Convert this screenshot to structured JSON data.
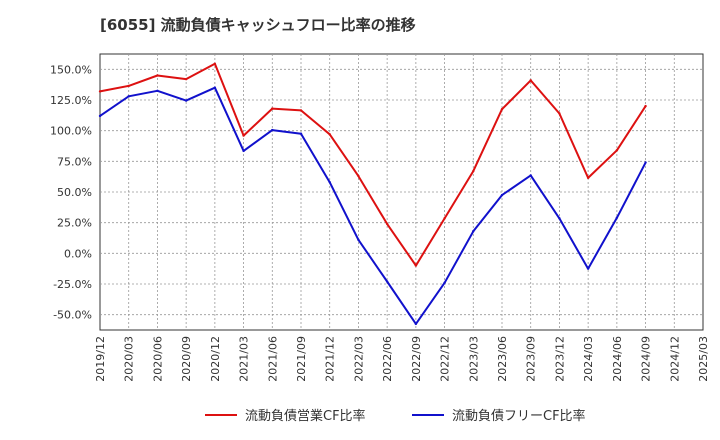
{
  "chart_data": {
    "type": "line",
    "title": "[6055]  流動負債キャッシュフロー比率の推移",
    "xlabel": "",
    "ylabel": "",
    "ylim": [
      -62.5,
      162.5
    ],
    "yticks": [
      150,
      125,
      100,
      75,
      50,
      25,
      0,
      -25,
      -50
    ],
    "ytick_labels": [
      "150.0%",
      "125.0%",
      "100.0%",
      "75.0%",
      "50.0%",
      "25.0%",
      "0.0%",
      "-25.0%",
      "-50.0%"
    ],
    "categories": [
      "2019/12",
      "2020/03",
      "2020/06",
      "2020/09",
      "2020/12",
      "2021/03",
      "2021/06",
      "2021/09",
      "2021/12",
      "2022/03",
      "2022/06",
      "2022/09",
      "2022/12",
      "2023/03",
      "2023/06",
      "2023/09",
      "2023/12",
      "2024/03",
      "2024/06",
      "2024/09",
      "2024/12",
      "2025/03"
    ],
    "grid": true,
    "legend_position": "bottom",
    "series": [
      {
        "name": "流動負債営業CF比率",
        "color": "#dd1111",
        "values": [
          132.0,
          136.5,
          145.0,
          142.0,
          154.5,
          96.0,
          118.0,
          116.5,
          97.0,
          63.0,
          24.0,
          -10.0,
          28.5,
          67.0,
          117.5,
          141.0,
          114.0,
          61.5,
          84.0,
          120.0,
          null,
          null
        ]
      },
      {
        "name": "流動負債フリーCF比率",
        "color": "#1111cc",
        "values": [
          112.0,
          128.0,
          132.5,
          124.5,
          135.0,
          83.5,
          100.5,
          97.5,
          58.0,
          11.0,
          -23.0,
          -57.5,
          -24.0,
          18.0,
          47.5,
          63.5,
          28.5,
          -12.5,
          29.0,
          74.0,
          null,
          null
        ]
      }
    ]
  }
}
